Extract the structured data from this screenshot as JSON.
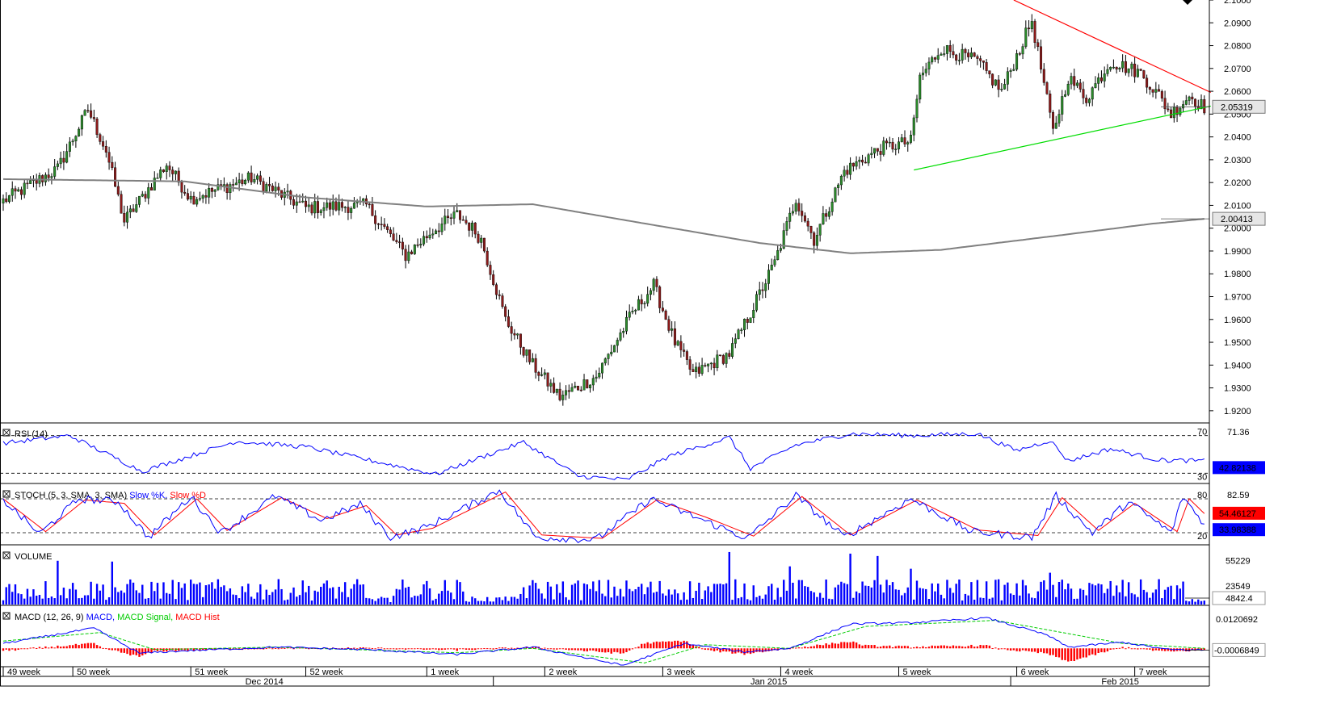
{
  "colors": {
    "up_candle": "#2b8a2b",
    "down_candle": "#8b1a1a",
    "ma_line": "#808080",
    "resistance_line": "#ff0000",
    "support_line": "#00dd00",
    "rsi_line": "#0000ff",
    "stoch_k": "#0000ff",
    "stoch_d": "#ff0000",
    "volume_bar": "#0000ff",
    "macd_line": "#0000ff",
    "macd_signal": "#00cc00",
    "macd_hist": "#ff0000",
    "current_price_box": "#e6e6e6",
    "stoch_d_box": "#ff0000",
    "stoch_k_box": "#0000ff",
    "volume_box": "#0000ff",
    "ma_box": "#e6e6e6"
  },
  "chart_data": [
    {
      "type": "candlestick",
      "name": "price",
      "ylim": [
        1.915,
        2.1
      ],
      "yticks": [
        "2.1000",
        "2.0900",
        "2.0800",
        "2.0700",
        "2.0600",
        "2.0500",
        "2.0400",
        "2.0300",
        "2.0200",
        "2.0100",
        "2.0000",
        "1.9900",
        "1.9800",
        "1.9700",
        "1.9600",
        "1.9500",
        "1.9400",
        "1.9300",
        "1.9200"
      ],
      "current_price_label": "2.05319",
      "current_price": 2.0532,
      "ma_label": "2.00413",
      "ma_value": 2.0041,
      "key_closes": [
        {
          "bar": 0,
          "value": 2.012
        },
        {
          "bar": 18,
          "value": 2.026
        },
        {
          "bar": 28,
          "value": 2.052
        },
        {
          "bar": 34,
          "value": 2.034
        },
        {
          "bar": 40,
          "value": 2.003
        },
        {
          "bar": 54,
          "value": 2.028
        },
        {
          "bar": 62,
          "value": 2.013
        },
        {
          "bar": 82,
          "value": 2.022
        },
        {
          "bar": 100,
          "value": 2.009
        },
        {
          "bar": 120,
          "value": 2.01
        },
        {
          "bar": 133,
          "value": 1.988
        },
        {
          "bar": 142,
          "value": 1.999
        },
        {
          "bar": 150,
          "value": 2.006
        },
        {
          "bar": 155,
          "value": 2.0
        },
        {
          "bar": 158,
          "value": 1.995
        },
        {
          "bar": 166,
          "value": 1.96
        },
        {
          "bar": 175,
          "value": 1.94
        },
        {
          "bar": 184,
          "value": 1.926
        },
        {
          "bar": 196,
          "value": 1.935
        },
        {
          "bar": 208,
          "value": 1.963
        },
        {
          "bar": 215,
          "value": 1.975
        },
        {
          "bar": 222,
          "value": 1.95
        },
        {
          "bar": 228,
          "value": 1.936
        },
        {
          "bar": 240,
          "value": 1.945
        },
        {
          "bar": 247,
          "value": 1.963
        },
        {
          "bar": 255,
          "value": 1.985
        },
        {
          "bar": 262,
          "value": 2.013
        },
        {
          "bar": 268,
          "value": 1.995
        },
        {
          "bar": 278,
          "value": 2.025
        },
        {
          "bar": 290,
          "value": 2.035
        },
        {
          "bar": 300,
          "value": 2.038
        },
        {
          "bar": 303,
          "value": 2.066
        },
        {
          "bar": 310,
          "value": 2.079
        },
        {
          "bar": 322,
          "value": 2.073
        },
        {
          "bar": 330,
          "value": 2.06
        },
        {
          "bar": 340,
          "value": 2.091
        },
        {
          "bar": 347,
          "value": 2.042
        },
        {
          "bar": 352,
          "value": 2.066
        },
        {
          "bar": 358,
          "value": 2.057
        },
        {
          "bar": 366,
          "value": 2.073
        },
        {
          "bar": 376,
          "value": 2.068
        },
        {
          "bar": 382,
          "value": 2.058
        },
        {
          "bar": 386,
          "value": 2.05
        },
        {
          "bar": 392,
          "value": 2.058
        },
        {
          "bar": 397,
          "value": 2.053
        }
      ],
      "ma_points": [
        {
          "bar": 0,
          "value": 2.0215
        },
        {
          "bar": 60,
          "value": 2.0205
        },
        {
          "bar": 100,
          "value": 2.0135
        },
        {
          "bar": 140,
          "value": 2.0095
        },
        {
          "bar": 175,
          "value": 2.0105
        },
        {
          "bar": 210,
          "value": 2.0025
        },
        {
          "bar": 250,
          "value": 1.9935
        },
        {
          "bar": 280,
          "value": 1.989
        },
        {
          "bar": 310,
          "value": 1.9905
        },
        {
          "bar": 350,
          "value": 1.997
        },
        {
          "bar": 380,
          "value": 2.002
        },
        {
          "bar": 397,
          "value": 2.0041
        }
      ],
      "trend_lines": [
        {
          "name": "resistance",
          "from": {
            "bar": 334,
            "value": 2.1
          },
          "to": {
            "bar": 397,
            "value": 2.0595
          }
        },
        {
          "name": "support",
          "from": {
            "bar": 301,
            "value": 2.0255
          },
          "to": {
            "bar": 397,
            "value": 2.0535
          }
        }
      ]
    },
    {
      "type": "line",
      "name": "rsi",
      "title": "RSI (14)",
      "ylim": [
        20,
        80
      ],
      "levels": [
        70,
        30
      ],
      "level_labels": [
        "70",
        "30"
      ],
      "yticks": [
        "71.36"
      ],
      "current_label": "42.82138",
      "key_values": [
        {
          "bar": 0,
          "value": 62
        },
        {
          "bar": 22,
          "value": 70
        },
        {
          "bar": 46,
          "value": 32
        },
        {
          "bar": 77,
          "value": 64
        },
        {
          "bar": 100,
          "value": 58
        },
        {
          "bar": 143,
          "value": 29
        },
        {
          "bar": 158,
          "value": 47
        },
        {
          "bar": 172,
          "value": 63
        },
        {
          "bar": 190,
          "value": 27
        },
        {
          "bar": 206,
          "value": 23
        },
        {
          "bar": 220,
          "value": 48
        },
        {
          "bar": 240,
          "value": 68
        },
        {
          "bar": 247,
          "value": 35
        },
        {
          "bar": 262,
          "value": 60
        },
        {
          "bar": 280,
          "value": 72
        },
        {
          "bar": 300,
          "value": 70
        },
        {
          "bar": 322,
          "value": 72
        },
        {
          "bar": 335,
          "value": 54
        },
        {
          "bar": 346,
          "value": 65
        },
        {
          "bar": 352,
          "value": 43
        },
        {
          "bar": 366,
          "value": 56
        },
        {
          "bar": 382,
          "value": 44
        },
        {
          "bar": 397,
          "value": 43
        }
      ]
    },
    {
      "type": "line",
      "name": "stochastic",
      "title": "STOCH (5, 3, SMA, 3, SMA)",
      "series_names": [
        "Slow %K",
        "Slow %D"
      ],
      "ylim": [
        0,
        100
      ],
      "levels": [
        80,
        20
      ],
      "level_labels": [
        "80",
        "20"
      ],
      "yticks": [
        "82.59"
      ],
      "current_d_label": "54.46127",
      "current_k_label": "33.98388",
      "series": [
        {
          "name": "Slow %K",
          "key_values": [
            {
              "bar": 0,
              "value": 78
            },
            {
              "bar": 12,
              "value": 18
            },
            {
              "bar": 25,
              "value": 80
            },
            {
              "bar": 38,
              "value": 75
            },
            {
              "bar": 48,
              "value": 12
            },
            {
              "bar": 62,
              "value": 84
            },
            {
              "bar": 72,
              "value": 20
            },
            {
              "bar": 90,
              "value": 85
            },
            {
              "bar": 105,
              "value": 42
            },
            {
              "bar": 118,
              "value": 70
            },
            {
              "bar": 128,
              "value": 12
            },
            {
              "bar": 140,
              "value": 30
            },
            {
              "bar": 164,
              "value": 95
            },
            {
              "bar": 176,
              "value": 12
            },
            {
              "bar": 196,
              "value": 8
            },
            {
              "bar": 214,
              "value": 80
            },
            {
              "bar": 230,
              "value": 45
            },
            {
              "bar": 246,
              "value": 10
            },
            {
              "bar": 262,
              "value": 86
            },
            {
              "bar": 278,
              "value": 12
            },
            {
              "bar": 300,
              "value": 80
            },
            {
              "bar": 320,
              "value": 22
            },
            {
              "bar": 340,
              "value": 12
            },
            {
              "bar": 348,
              "value": 85
            },
            {
              "bar": 360,
              "value": 20
            },
            {
              "bar": 372,
              "value": 75
            },
            {
              "bar": 386,
              "value": 20
            },
            {
              "bar": 390,
              "value": 84
            },
            {
              "bar": 397,
              "value": 34
            }
          ]
        },
        {
          "name": "Slow %D",
          "key_values": [
            {
              "bar": 0,
              "value": 80
            },
            {
              "bar": 14,
              "value": 22
            },
            {
              "bar": 27,
              "value": 78
            },
            {
              "bar": 40,
              "value": 72
            },
            {
              "bar": 50,
              "value": 16
            },
            {
              "bar": 64,
              "value": 80
            },
            {
              "bar": 74,
              "value": 24
            },
            {
              "bar": 92,
              "value": 82
            },
            {
              "bar": 107,
              "value": 45
            },
            {
              "bar": 120,
              "value": 68
            },
            {
              "bar": 130,
              "value": 16
            },
            {
              "bar": 142,
              "value": 28
            },
            {
              "bar": 166,
              "value": 92
            },
            {
              "bar": 178,
              "value": 16
            },
            {
              "bar": 198,
              "value": 10
            },
            {
              "bar": 216,
              "value": 78
            },
            {
              "bar": 232,
              "value": 48
            },
            {
              "bar": 248,
              "value": 14
            },
            {
              "bar": 264,
              "value": 84
            },
            {
              "bar": 280,
              "value": 16
            },
            {
              "bar": 302,
              "value": 78
            },
            {
              "bar": 322,
              "value": 25
            },
            {
              "bar": 342,
              "value": 15
            },
            {
              "bar": 350,
              "value": 82
            },
            {
              "bar": 362,
              "value": 24
            },
            {
              "bar": 374,
              "value": 72
            },
            {
              "bar": 388,
              "value": 22
            },
            {
              "bar": 392,
              "value": 80
            },
            {
              "bar": 397,
              "value": 54
            }
          ]
        }
      ]
    },
    {
      "type": "bar",
      "name": "volume",
      "title": "VOLUME",
      "ylim": [
        0,
        70000
      ],
      "yticks": [
        "55229",
        "23549"
      ],
      "current_label": "4842.4",
      "gaps": [
        [
          120,
          128
        ],
        [
          153,
          170
        ]
      ],
      "peaks": [
        {
          "bar": 18,
          "value": 55000
        },
        {
          "bar": 36,
          "value": 54000
        },
        {
          "bar": 240,
          "value": 66000
        },
        {
          "bar": 260,
          "value": 48000
        },
        {
          "bar": 280,
          "value": 64000
        },
        {
          "bar": 289,
          "value": 61000
        },
        {
          "bar": 300,
          "value": 45000
        },
        {
          "bar": 346,
          "value": 40000
        }
      ],
      "typical_range": [
        5000,
        32000
      ]
    },
    {
      "type": "line",
      "name": "macd",
      "title": "MACD (12, 26, 9)",
      "series_names": [
        "MACD",
        "MACD Signal",
        "MACD Hist"
      ],
      "ylim": [
        -0.0072,
        0.016
      ],
      "yticks": [
        "0.0120692"
      ],
      "current_label": "-0.0006849",
      "series": [
        {
          "name": "MACD",
          "key_values": [
            {
              "bar": 0,
              "value": 0.002
            },
            {
              "bar": 30,
              "value": 0.0083
            },
            {
              "bar": 45,
              "value": -0.002
            },
            {
              "bar": 60,
              "value": -0.001
            },
            {
              "bar": 90,
              "value": 0.0005
            },
            {
              "bar": 120,
              "value": -0.0005
            },
            {
              "bar": 150,
              "value": -0.0025
            },
            {
              "bar": 175,
              "value": 0.0005
            },
            {
              "bar": 205,
              "value": -0.007
            },
            {
              "bar": 225,
              "value": 0.002
            },
            {
              "bar": 245,
              "value": -0.0015
            },
            {
              "bar": 260,
              "value": 0.0
            },
            {
              "bar": 280,
              "value": 0.01
            },
            {
              "bar": 300,
              "value": 0.0105
            },
            {
              "bar": 325,
              "value": 0.0125
            },
            {
              "bar": 345,
              "value": 0.0055
            },
            {
              "bar": 352,
              "value": 0.0005
            },
            {
              "bar": 370,
              "value": 0.0025
            },
            {
              "bar": 385,
              "value": -0.0005
            },
            {
              "bar": 397,
              "value": -0.0007
            }
          ]
        },
        {
          "name": "MACD Signal",
          "key_values": [
            {
              "bar": 0,
              "value": 0.003
            },
            {
              "bar": 32,
              "value": 0.0065
            },
            {
              "bar": 50,
              "value": -0.0005
            },
            {
              "bar": 90,
              "value": 0.0005
            },
            {
              "bar": 150,
              "value": -0.0018
            },
            {
              "bar": 175,
              "value": 0.0
            },
            {
              "bar": 212,
              "value": -0.006
            },
            {
              "bar": 232,
              "value": 0.0015
            },
            {
              "bar": 260,
              "value": 0.0
            },
            {
              "bar": 285,
              "value": 0.009
            },
            {
              "bar": 328,
              "value": 0.0115
            },
            {
              "bar": 350,
              "value": 0.0065
            },
            {
              "bar": 370,
              "value": 0.002
            },
            {
              "bar": 397,
              "value": 0.0
            }
          ]
        }
      ]
    }
  ],
  "x_axis": {
    "week_labels": [
      {
        "label": "49 week",
        "bar": 0
      },
      {
        "label": "50 week",
        "bar": 23
      },
      {
        "label": "51 week",
        "bar": 62
      },
      {
        "label": "52 week",
        "bar": 100
      },
      {
        "label": "1 week",
        "bar": 140
      },
      {
        "label": "2 week",
        "bar": 179
      },
      {
        "label": "3 week",
        "bar": 218
      },
      {
        "label": "4 week",
        "bar": 257
      },
      {
        "label": "5 week",
        "bar": 296
      },
      {
        "label": "6 week",
        "bar": 335
      },
      {
        "label": "7 week",
        "bar": 374
      }
    ],
    "month_labels": [
      {
        "label": "Dec 2014",
        "bar": 80
      },
      {
        "label": "Jan 2015",
        "bar": 247
      },
      {
        "label": "Feb 2015",
        "bar": 363
      }
    ],
    "month_separators": [
      162,
      333
    ]
  }
}
